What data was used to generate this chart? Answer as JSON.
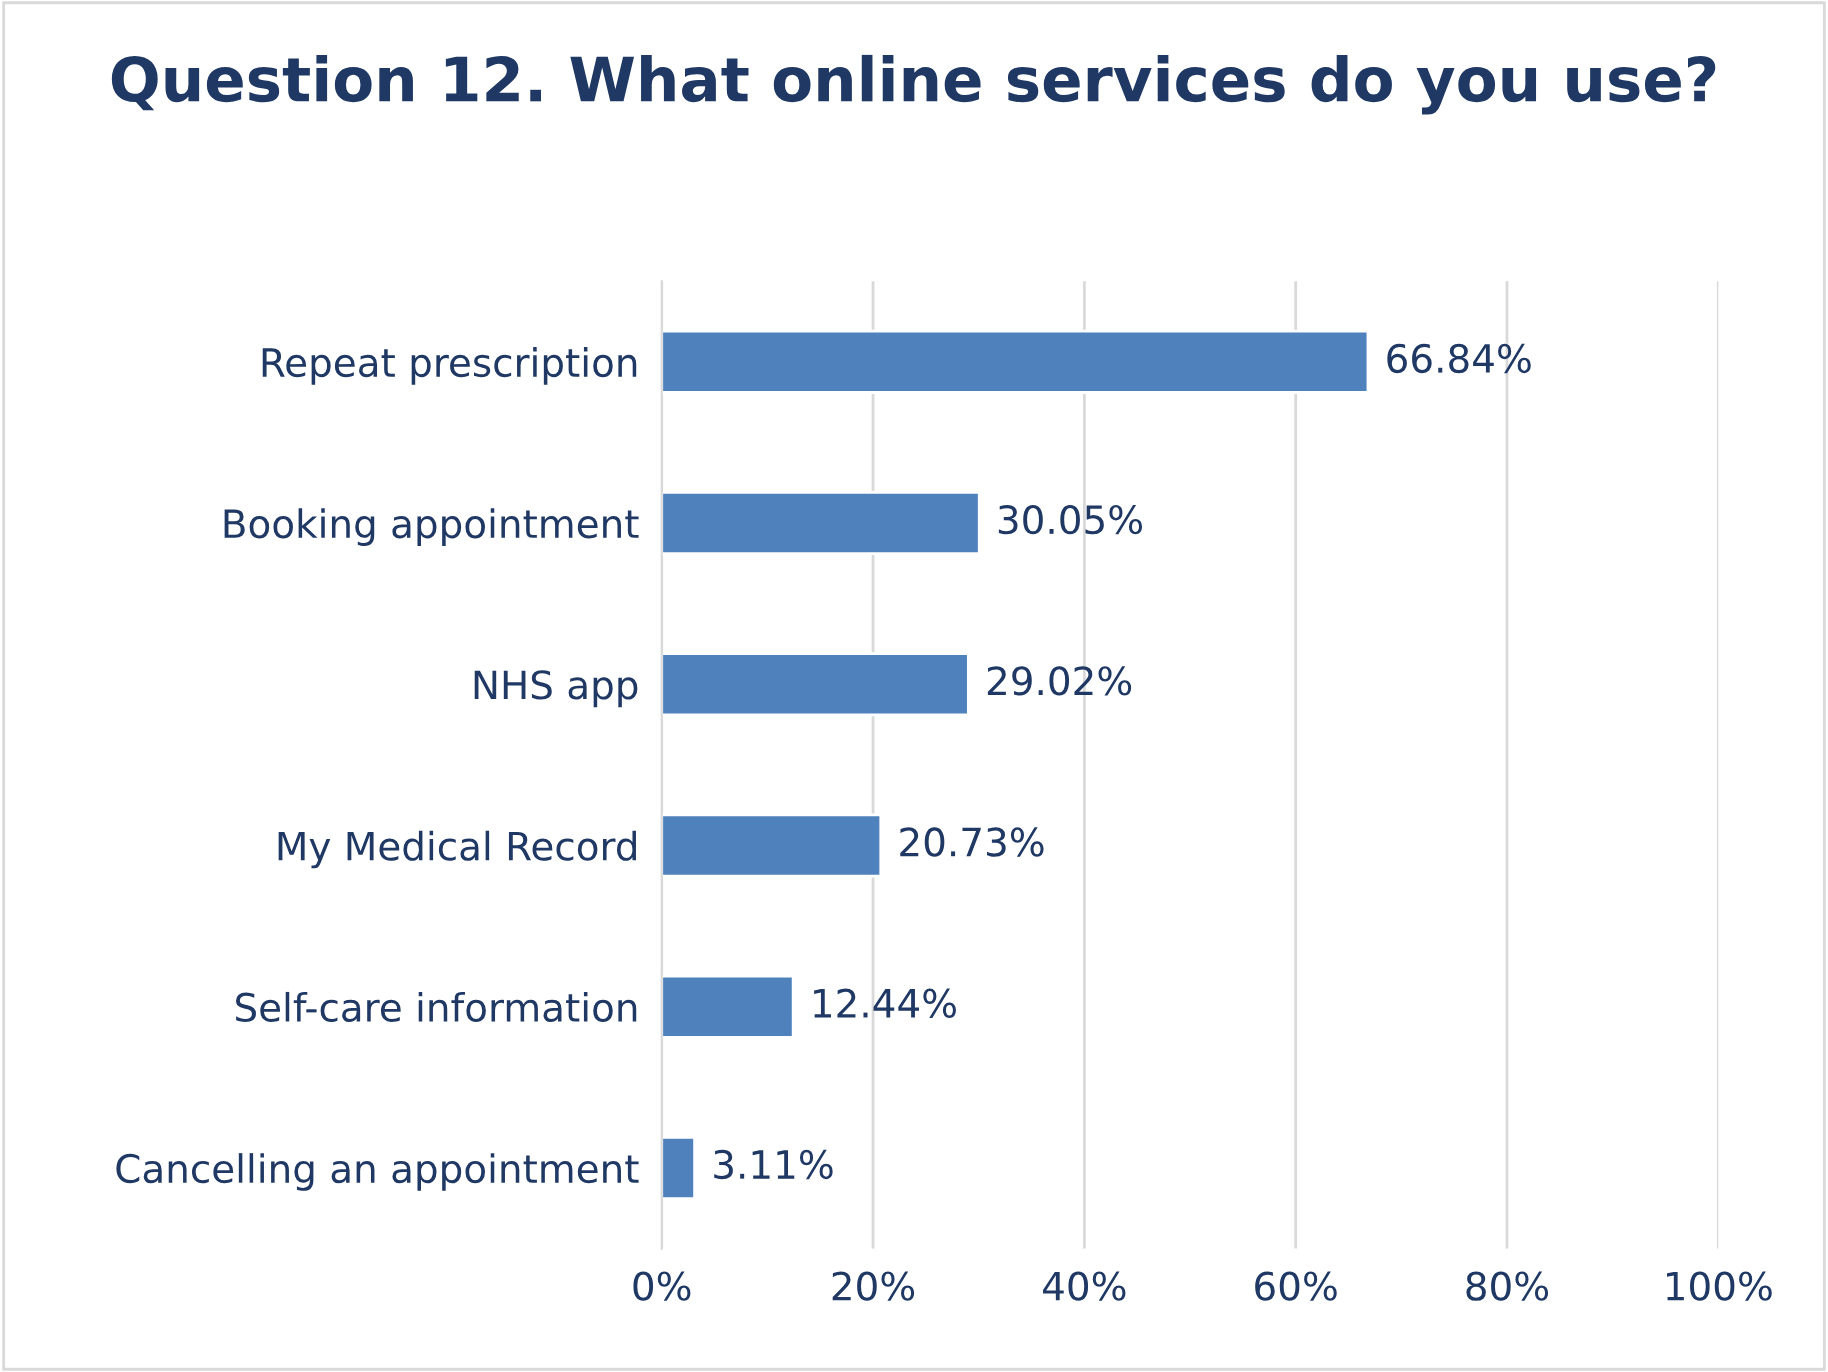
{
  "chart_data": {
    "type": "bar",
    "orientation": "horizontal",
    "title": "Question 12. What online services do you use?",
    "categories": [
      "Repeat prescription",
      "Booking appointment",
      "NHS app",
      "My Medical Record",
      "Self-care information",
      "Cancelling an appointment"
    ],
    "values": [
      66.84,
      30.05,
      29.02,
      20.73,
      12.44,
      3.11
    ],
    "value_labels": [
      "66.84%",
      "30.05%",
      "29.02%",
      "20.73%",
      "12.44%",
      "3.11%"
    ],
    "color": "#4f81bd",
    "xlim": [
      0,
      100
    ],
    "xticks": [
      {
        "value": 0,
        "label": "0%"
      },
      {
        "value": 20,
        "label": "20%"
      },
      {
        "value": 40,
        "label": "40%"
      },
      {
        "value": 60,
        "label": "60%"
      },
      {
        "value": 80,
        "label": "80%"
      },
      {
        "value": 100,
        "label": "100%"
      }
    ],
    "grid": "x",
    "legend": false
  }
}
